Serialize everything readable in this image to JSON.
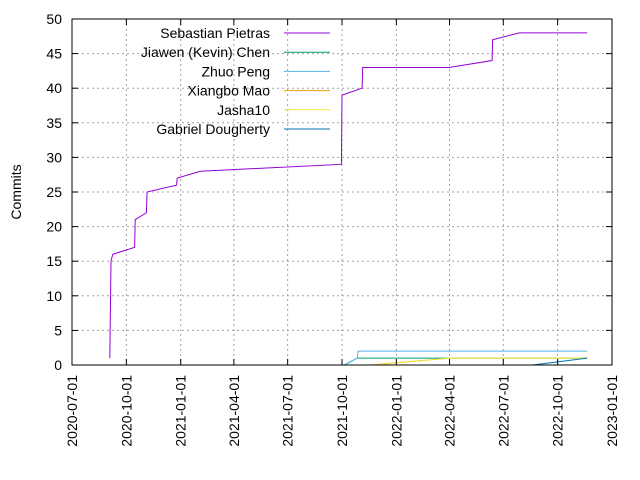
{
  "chart_data": {
    "type": "line",
    "title": "",
    "xlabel": "",
    "ylabel": "Commits",
    "xlim": [
      "2020-07-01",
      "2023-01-01"
    ],
    "ylim": [
      0,
      50
    ],
    "grid": true,
    "legend_position": "top-left",
    "x_ticks": [
      "2020-07-01",
      "2020-10-01",
      "2021-01-01",
      "2021-04-01",
      "2021-07-01",
      "2021-10-01",
      "2022-01-01",
      "2022-04-01",
      "2022-07-01",
      "2022-10-01",
      "2023-01-01"
    ],
    "y_ticks": [
      0,
      5,
      10,
      15,
      20,
      25,
      30,
      35,
      40,
      45,
      50
    ],
    "series": [
      {
        "name": "Sebastian Pietras",
        "color": "#9400d3",
        "points": [
          [
            "2020-09-03",
            1
          ],
          [
            "2020-09-04",
            8
          ],
          [
            "2020-09-05",
            15
          ],
          [
            "2020-09-08",
            16
          ],
          [
            "2020-10-15",
            17
          ],
          [
            "2020-10-16",
            21
          ],
          [
            "2020-11-04",
            22
          ],
          [
            "2020-11-05",
            25
          ],
          [
            "2020-12-25",
            26
          ],
          [
            "2020-12-26",
            27
          ],
          [
            "2021-02-03",
            28
          ],
          [
            "2021-09-30",
            29
          ],
          [
            "2021-10-01",
            39
          ],
          [
            "2021-11-04",
            40
          ],
          [
            "2021-11-05",
            43
          ],
          [
            "2022-03-31",
            43
          ],
          [
            "2022-06-12",
            44
          ],
          [
            "2022-06-13",
            47
          ],
          [
            "2022-07-28",
            48
          ],
          [
            "2022-11-20",
            48
          ]
        ]
      },
      {
        "name": "Jiawen (Kevin) Chen",
        "color": "#009e73",
        "points": [
          [
            "2021-10-05",
            0
          ],
          [
            "2021-10-27",
            1
          ],
          [
            "2022-11-20",
            1
          ]
        ]
      },
      {
        "name": "Zhuo Peng",
        "color": "#56b4e9",
        "points": [
          [
            "2021-10-05",
            0
          ],
          [
            "2021-10-27",
            1
          ],
          [
            "2021-10-28",
            2
          ],
          [
            "2022-11-20",
            2
          ]
        ]
      },
      {
        "name": "Xiangbo Mao",
        "color": "#e69f00",
        "points": [
          [
            "2021-11-20",
            0
          ],
          [
            "2022-04-01",
            1
          ],
          [
            "2022-11-20",
            1
          ]
        ]
      },
      {
        "name": "Jasha10",
        "color": "#f0e442",
        "points": [
          [
            "2021-11-25",
            0
          ],
          [
            "2022-04-01",
            1
          ],
          [
            "2022-11-20",
            1
          ]
        ]
      },
      {
        "name": "Gabriel Dougherty",
        "color": "#0072b2",
        "points": [
          [
            "2022-08-20",
            0
          ],
          [
            "2022-11-20",
            1
          ]
        ]
      }
    ]
  }
}
